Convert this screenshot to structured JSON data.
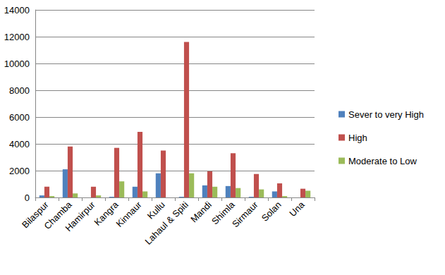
{
  "chart_data": {
    "type": "bar",
    "categories": [
      "Bilaspur",
      "Chamba",
      "Hamirpur",
      "Kangra",
      "Kinnaur",
      "Kullu",
      "Lahaul & Spiti",
      "Mandi",
      "Shimla",
      "Sirmaur",
      "Solan",
      "Una"
    ],
    "series": [
      {
        "name": "Sever to very High",
        "color": "#4f81bd",
        "values": [
          150,
          2100,
          0,
          50,
          800,
          1800,
          50,
          900,
          850,
          50,
          450,
          0
        ]
      },
      {
        "name": "High",
        "color": "#c0504d",
        "values": [
          800,
          3800,
          800,
          3700,
          4900,
          3500,
          11600,
          1950,
          3300,
          1750,
          1050,
          650
        ]
      },
      {
        "name": "Moderate to Low",
        "color": "#9bbb59",
        "values": [
          100,
          300,
          150,
          1200,
          450,
          0,
          1800,
          800,
          700,
          600,
          100,
          500
        ]
      }
    ],
    "ylim": [
      0,
      14000
    ],
    "yticks": [
      0,
      2000,
      4000,
      6000,
      8000,
      10000,
      12000,
      14000
    ],
    "grid": true,
    "legend": "right"
  }
}
